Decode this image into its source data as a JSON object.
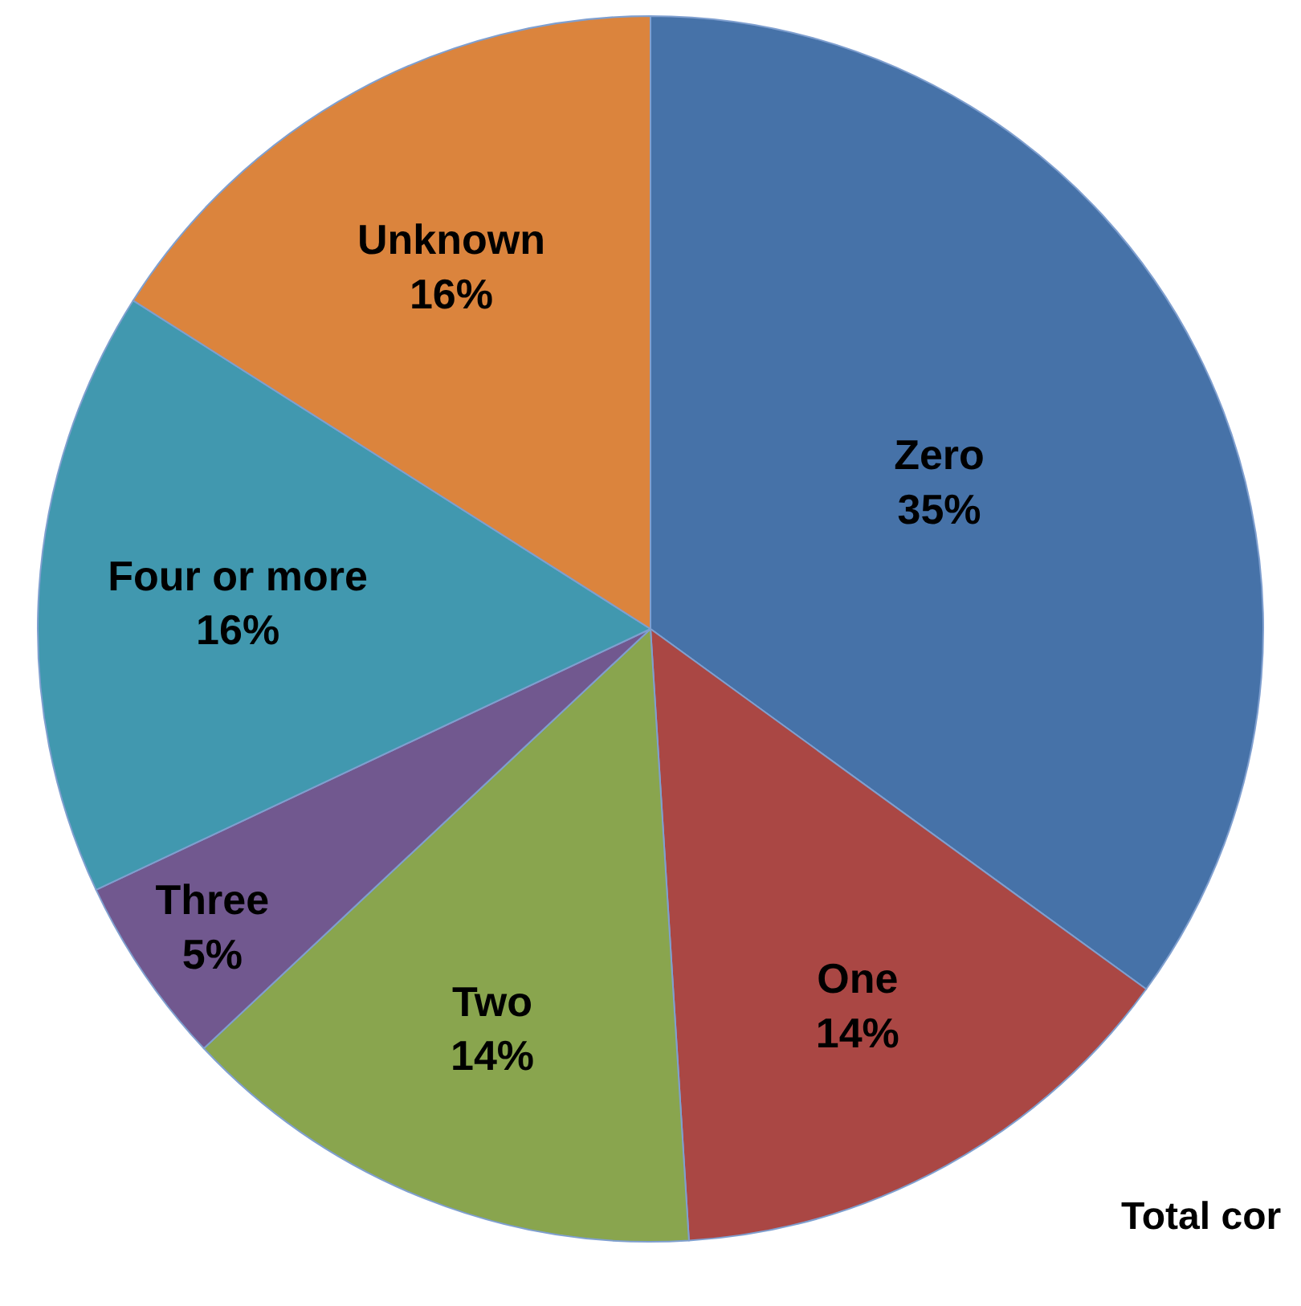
{
  "chart_data": {
    "type": "pie",
    "categories": [
      "Zero",
      "One",
      "Two",
      "Three",
      "Four or more",
      "Unknown"
    ],
    "values": [
      35,
      14,
      14,
      5,
      16,
      16
    ],
    "colors": [
      "#4672a8",
      "#aa4744",
      "#89a54e",
      "#71588f",
      "#4198af",
      "#db843d"
    ],
    "value_labels": [
      "35%",
      "14%",
      "14%",
      "5%",
      "16%",
      "16%"
    ],
    "legend": false,
    "annotations": [
      "Total cor"
    ]
  }
}
